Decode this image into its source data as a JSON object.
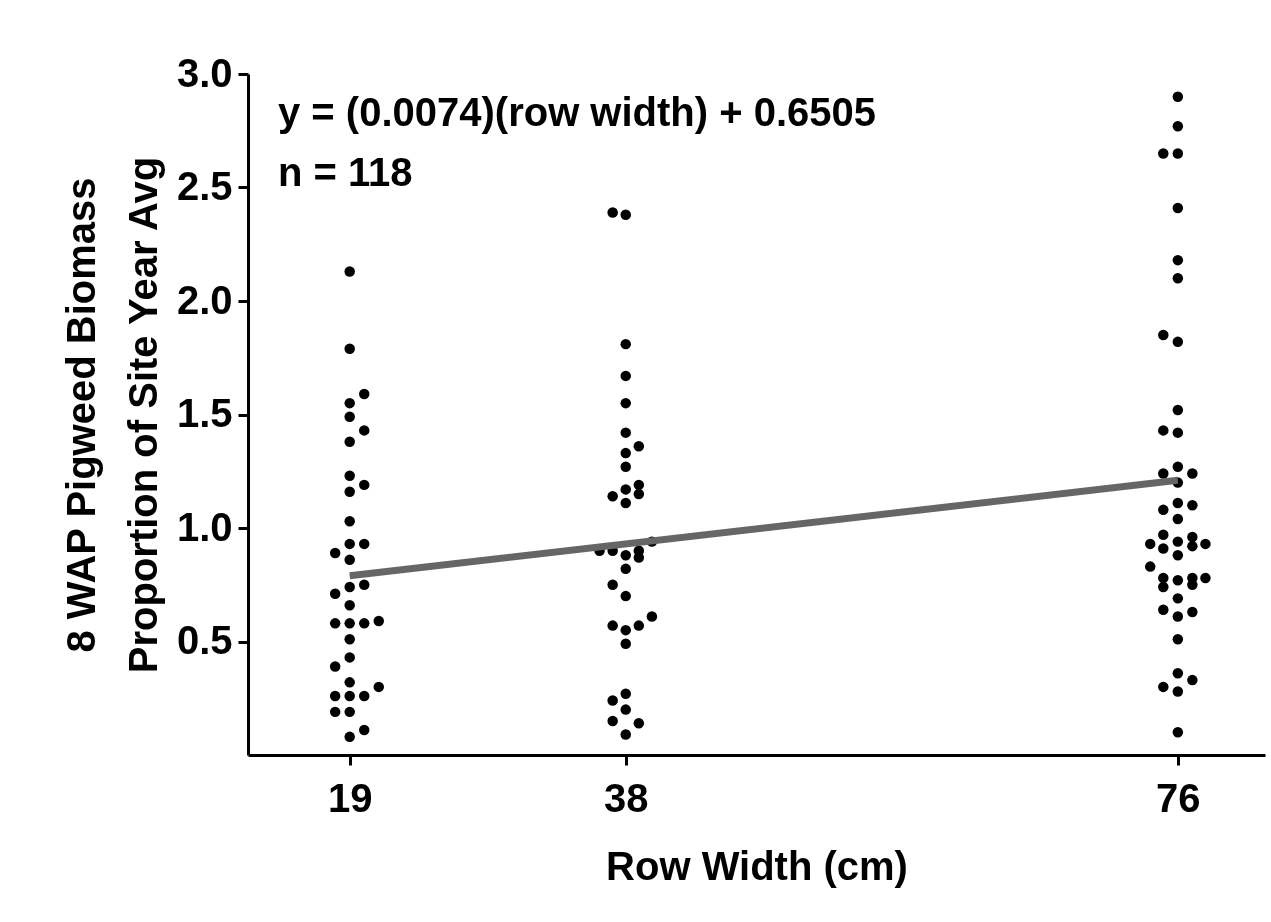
{
  "chart_data": {
    "type": "scatter",
    "xlabel": "Row Width (cm)",
    "ylabel": "8 WAP Pigweed Biomass\nProportion of Site Year Avg",
    "annotations": [
      "y = (0.0074)(row width) + 0.6505",
      "n = 118"
    ],
    "xlim": [
      12,
      82
    ],
    "xticks": [
      19,
      38,
      76
    ],
    "ylim": [
      0,
      3
    ],
    "yticks": [
      0.5,
      {
        "value": 1,
        "label": "1.0"
      },
      1.5,
      {
        "value": 2,
        "label": "2.0"
      },
      2.5,
      {
        "value": 3,
        "label": "3.0"
      }
    ],
    "series": [
      {
        "marker": "circle",
        "color": "#000000",
        "x": [
          19,
          19,
          20,
          19,
          19,
          20,
          19,
          19,
          20,
          19,
          19,
          19,
          20,
          18,
          19,
          19,
          20,
          18,
          19,
          18,
          19,
          20,
          21,
          19,
          19,
          18,
          19,
          21,
          18,
          19,
          20,
          18,
          19,
          20,
          19,
          37.1,
          38,
          38,
          38,
          38,
          38,
          38,
          38.9,
          38,
          38,
          38.9,
          38.9,
          37.1,
          38,
          39.8,
          36.2,
          37.1,
          38,
          38.9,
          38.9,
          38,
          37.1,
          38,
          37.1,
          38,
          38.9,
          39.8,
          38,
          38,
          37.1,
          38,
          37.1,
          38.9,
          38,
          76,
          76,
          75,
          76,
          76,
          76,
          76,
          75,
          76,
          76,
          75,
          76,
          76,
          75,
          77,
          76,
          76,
          75,
          77,
          76,
          75,
          74.1,
          75,
          76,
          76,
          77,
          77,
          77.9,
          74.1,
          75,
          75,
          76,
          77,
          77,
          77.9,
          76,
          75,
          76,
          77,
          76,
          76,
          75,
          76,
          77,
          76
        ],
        "values": [
          2.13,
          1.79,
          1.59,
          1.55,
          1.49,
          1.43,
          1.38,
          1.23,
          1.19,
          1.16,
          1.03,
          0.93,
          0.93,
          0.89,
          0.86,
          0.74,
          0.75,
          0.71,
          0.66,
          0.58,
          0.58,
          0.58,
          0.59,
          0.51,
          0.43,
          0.39,
          0.32,
          0.3,
          0.26,
          0.26,
          0.26,
          0.19,
          0.19,
          0.11,
          0.08,
          2.39,
          2.38,
          1.81,
          1.67,
          1.55,
          1.42,
          1.33,
          1.36,
          1.27,
          1.17,
          1.19,
          1.15,
          1.14,
          1.11,
          0.94,
          0.9,
          0.9,
          0.88,
          0.9,
          0.87,
          0.82,
          0.75,
          0.7,
          0.57,
          0.55,
          0.57,
          0.61,
          0.49,
          0.27,
          0.24,
          0.2,
          0.15,
          0.14,
          0.09,
          2.9,
          2.77,
          2.65,
          2.65,
          2.41,
          2.18,
          2.1,
          1.85,
          1.82,
          1.52,
          1.43,
          1.42,
          1.27,
          1.24,
          1.24,
          1.2,
          1.11,
          1.08,
          1.1,
          1.04,
          0.97,
          0.93,
          0.91,
          0.94,
          0.88,
          0.96,
          0.92,
          0.93,
          0.83,
          0.78,
          0.74,
          0.77,
          0.78,
          0.75,
          0.78,
          0.69,
          0.64,
          0.61,
          0.63,
          0.51,
          0.36,
          0.3,
          0.28,
          0.33,
          0.1
        ]
      },
      {
        "type": "line",
        "color": "#666666",
        "x": [
          19,
          76
        ],
        "values": [
          0.79,
          1.21
        ]
      }
    ]
  }
}
